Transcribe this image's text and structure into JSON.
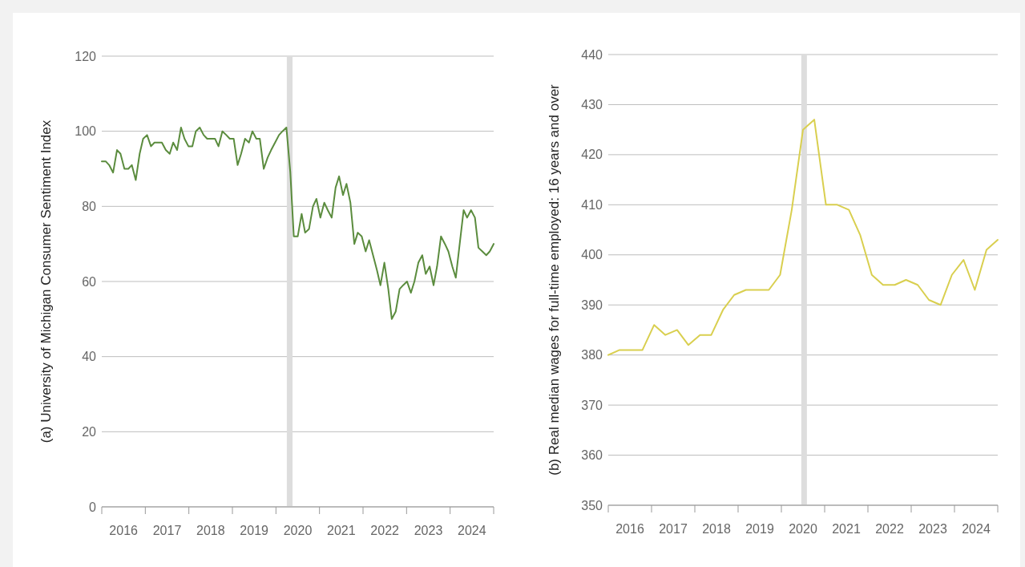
{
  "chart_data": [
    {
      "type": "line",
      "ylabel": "(a) University of Michigan Consumer Sentiment Index",
      "xlim": [
        2016,
        2025
      ],
      "ylim": [
        0,
        120
      ],
      "yticks": [
        0,
        20,
        40,
        60,
        80,
        100,
        120
      ],
      "grid": "y",
      "marker": "none",
      "line_style": "solid",
      "xticks": [
        {
          "value": 2016,
          "label": null
        },
        {
          "value": 2017,
          "label": null
        },
        {
          "value": 2018,
          "label": null
        },
        {
          "value": 2019,
          "label": null
        },
        {
          "value": 2020,
          "label": null
        },
        {
          "value": 2021,
          "label": null
        },
        {
          "value": 2022,
          "label": null
        },
        {
          "value": 2023,
          "label": null
        },
        {
          "value": 2024,
          "label": null
        },
        {
          "value": 2025,
          "label": null
        },
        {
          "value": 2016.5,
          "label": "2016"
        },
        {
          "value": 2017.5,
          "label": "2017"
        },
        {
          "value": 2018.5,
          "label": "2018"
        },
        {
          "value": 2019.5,
          "label": "2019"
        },
        {
          "value": 2020.5,
          "label": "2020"
        },
        {
          "value": 2021.5,
          "label": "2021"
        },
        {
          "value": 2022.5,
          "label": "2022"
        },
        {
          "value": 2023.5,
          "label": "2023"
        },
        {
          "value": 2024.5,
          "label": "2024"
        }
      ],
      "bands": [
        {
          "axis": "x",
          "from": 2020.25,
          "to": 2020.38,
          "color": "#dddddd"
        }
      ],
      "series": [
        {
          "color": "#5b8c3e",
          "x": [
            2016.0,
            2016.09,
            2016.17,
            2016.26,
            2016.35,
            2016.43,
            2016.52,
            2016.61,
            2016.69,
            2016.78,
            2016.87,
            2016.95,
            2017.04,
            2017.13,
            2017.21,
            2017.3,
            2017.38,
            2017.47,
            2017.56,
            2017.64,
            2017.73,
            2017.82,
            2017.9,
            2017.99,
            2018.08,
            2018.16,
            2018.25,
            2018.34,
            2018.42,
            2018.51,
            2018.6,
            2018.68,
            2018.77,
            2018.86,
            2018.94,
            2019.03,
            2019.12,
            2019.2,
            2019.29,
            2019.38,
            2019.46,
            2019.55,
            2019.63,
            2019.72,
            2019.81,
            2019.89,
            2019.98,
            2020.07,
            2020.15,
            2020.24,
            2020.33,
            2020.41,
            2020.5,
            2020.59,
            2020.67,
            2020.76,
            2020.85,
            2020.93,
            2021.02,
            2021.11,
            2021.19,
            2021.28,
            2021.37,
            2021.45,
            2021.54,
            2021.62,
            2021.71,
            2021.8,
            2021.88,
            2021.97,
            2022.06,
            2022.14,
            2022.23,
            2022.32,
            2022.4,
            2022.49,
            2022.58,
            2022.66,
            2022.75,
            2022.84,
            2022.92,
            2023.01,
            2023.1,
            2023.18,
            2023.27,
            2023.36,
            2023.44,
            2023.53,
            2023.62,
            2023.7,
            2023.79,
            2023.88,
            2023.96,
            2024.05,
            2024.13,
            2024.22,
            2024.31,
            2024.39,
            2024.48,
            2024.57,
            2024.65,
            2024.74,
            2024.83,
            2024.91,
            2025.0
          ],
          "values": [
            92,
            92,
            91,
            89,
            95,
            94,
            90,
            90,
            91,
            87,
            94,
            98,
            99,
            96,
            97,
            97,
            97,
            95,
            94,
            97,
            95,
            101,
            98,
            96,
            96,
            100,
            101,
            99,
            98,
            98,
            98,
            96,
            100,
            99,
            98,
            98,
            91,
            94,
            98,
            97,
            100,
            98,
            98,
            90,
            93,
            95,
            97,
            99,
            100,
            101,
            89,
            72,
            72,
            78,
            73,
            74,
            80,
            82,
            77,
            81,
            79,
            77,
            85,
            88,
            83,
            86,
            81,
            70,
            73,
            72,
            68,
            71,
            67,
            63,
            59,
            65,
            58,
            50,
            52,
            58,
            59,
            60,
            57,
            60,
            65,
            67,
            62,
            64,
            59,
            64,
            72,
            70,
            68,
            64,
            61,
            70,
            79,
            77,
            79,
            77,
            69,
            68,
            67,
            68,
            70
          ]
        }
      ]
    },
    {
      "type": "line",
      "ylabel": "(b) Real median wages for full-time employed: 16 years and over",
      "xlim": [
        2016,
        2025
      ],
      "ylim": [
        350,
        440
      ],
      "yticks": [
        350,
        360,
        370,
        380,
        390,
        400,
        410,
        420,
        430,
        440
      ],
      "grid": "y",
      "marker": "none",
      "line_style": "solid",
      "xticks": [
        {
          "value": 2016,
          "label": null
        },
        {
          "value": 2017,
          "label": null
        },
        {
          "value": 2018,
          "label": null
        },
        {
          "value": 2019,
          "label": null
        },
        {
          "value": 2020,
          "label": null
        },
        {
          "value": 2021,
          "label": null
        },
        {
          "value": 2022,
          "label": null
        },
        {
          "value": 2023,
          "label": null
        },
        {
          "value": 2024,
          "label": null
        },
        {
          "value": 2025,
          "label": null
        },
        {
          "value": 2016.5,
          "label": "2016"
        },
        {
          "value": 2017.5,
          "label": "2017"
        },
        {
          "value": 2018.5,
          "label": "2018"
        },
        {
          "value": 2019.5,
          "label": "2019"
        },
        {
          "value": 2020.5,
          "label": "2020"
        },
        {
          "value": 2021.5,
          "label": "2021"
        },
        {
          "value": 2022.5,
          "label": "2022"
        },
        {
          "value": 2023.5,
          "label": "2023"
        },
        {
          "value": 2024.5,
          "label": "2024"
        }
      ],
      "bands": [
        {
          "axis": "x",
          "from": 2020.46,
          "to": 2020.59,
          "color": "#dddddd"
        }
      ],
      "series": [
        {
          "color": "#d9cf4f",
          "x": [
            2016.0,
            2016.26,
            2016.53,
            2016.79,
            2017.06,
            2017.32,
            2017.59,
            2017.85,
            2018.12,
            2018.38,
            2018.65,
            2018.91,
            2019.18,
            2019.44,
            2019.71,
            2019.97,
            2020.24,
            2020.5,
            2020.76,
            2021.03,
            2021.29,
            2021.56,
            2021.82,
            2022.09,
            2022.35,
            2022.62,
            2022.88,
            2023.15,
            2023.41,
            2023.68,
            2023.94,
            2024.21,
            2024.47,
            2024.74,
            2025.0
          ],
          "values": [
            380,
            381,
            381,
            381,
            386,
            384,
            385,
            382,
            384,
            384,
            389,
            392,
            393,
            393,
            393,
            396,
            409,
            425,
            427,
            410,
            410,
            409,
            404,
            396,
            394,
            394,
            395,
            394,
            391,
            390,
            396,
            399,
            393,
            401,
            403
          ]
        }
      ]
    }
  ]
}
